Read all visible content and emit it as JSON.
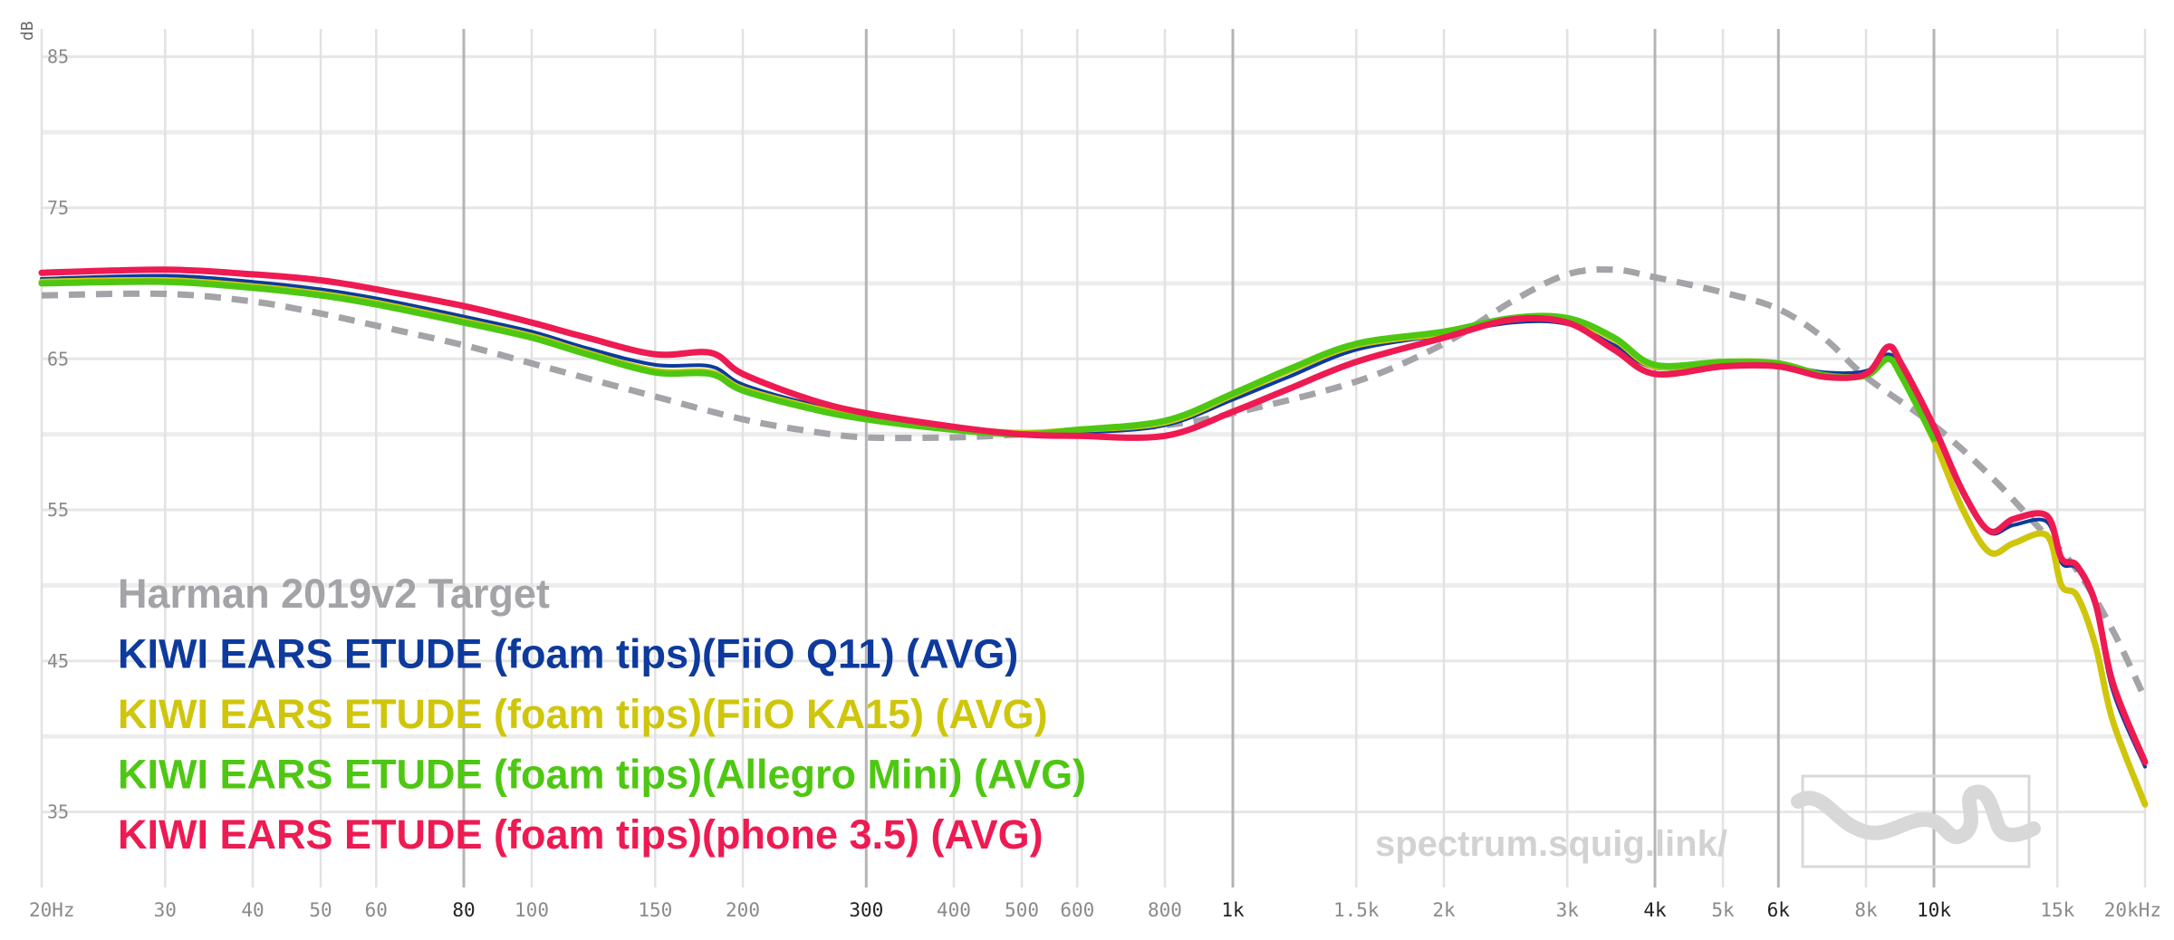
{
  "chart_data": {
    "type": "line",
    "x_scale": "log",
    "xlim": [
      20,
      20000
    ],
    "ylim": [
      30,
      86
    ],
    "ylabel": "dB",
    "x_ticks": [
      {
        "v": 20,
        "label": "20Hz",
        "major": false
      },
      {
        "v": 30,
        "label": "30",
        "major": false
      },
      {
        "v": 40,
        "label": "40",
        "major": false
      },
      {
        "v": 50,
        "label": "50",
        "major": false
      },
      {
        "v": 60,
        "label": "60",
        "major": false
      },
      {
        "v": 80,
        "label": "80",
        "major": true
      },
      {
        "v": 100,
        "label": "100",
        "major": false
      },
      {
        "v": 150,
        "label": "150",
        "major": false
      },
      {
        "v": 200,
        "label": "200",
        "major": false
      },
      {
        "v": 300,
        "label": "300",
        "major": true
      },
      {
        "v": 400,
        "label": "400",
        "major": false
      },
      {
        "v": 500,
        "label": "500",
        "major": false
      },
      {
        "v": 600,
        "label": "600",
        "major": false
      },
      {
        "v": 800,
        "label": "800",
        "major": false
      },
      {
        "v": 1000,
        "label": "1k",
        "major": true
      },
      {
        "v": 1500,
        "label": "1.5k",
        "major": false
      },
      {
        "v": 2000,
        "label": "2k",
        "major": false
      },
      {
        "v": 3000,
        "label": "3k",
        "major": false
      },
      {
        "v": 4000,
        "label": "4k",
        "major": true
      },
      {
        "v": 5000,
        "label": "5k",
        "major": false
      },
      {
        "v": 6000,
        "label": "6k",
        "major": true
      },
      {
        "v": 8000,
        "label": "8k",
        "major": false
      },
      {
        "v": 10000,
        "label": "10k",
        "major": true
      },
      {
        "v": 15000,
        "label": "15k",
        "major": false
      },
      {
        "v": 20000,
        "label": "20kHz",
        "major": false
      }
    ],
    "y_ticks": [
      {
        "v": 85,
        "label": "85"
      },
      {
        "v": 75,
        "label": "75"
      },
      {
        "v": 65,
        "label": "65"
      },
      {
        "v": 55,
        "label": "55"
      },
      {
        "v": 45,
        "label": "45"
      },
      {
        "v": 35,
        "label": "35"
      }
    ],
    "y_grid_minor": [
      80,
      70,
      60,
      50,
      40
    ],
    "grid": true,
    "legend_position": "bottom-left",
    "series": [
      {
        "name": "Harman 2019v2 Target",
        "color": "#a3a3a8",
        "dashed": true,
        "points": [
          [
            20,
            69.2
          ],
          [
            30,
            69.3
          ],
          [
            40,
            68.8
          ],
          [
            50,
            68.0
          ],
          [
            60,
            67.2
          ],
          [
            80,
            65.9
          ],
          [
            100,
            64.7
          ],
          [
            150,
            62.5
          ],
          [
            200,
            61.0
          ],
          [
            250,
            60.2
          ],
          [
            300,
            59.8
          ],
          [
            400,
            59.8
          ],
          [
            500,
            60.0
          ],
          [
            600,
            60.2
          ],
          [
            800,
            60.6
          ],
          [
            1000,
            61.4
          ],
          [
            1500,
            63.5
          ],
          [
            2000,
            66.0
          ],
          [
            2500,
            68.8
          ],
          [
            3000,
            70.6
          ],
          [
            3500,
            70.9
          ],
          [
            4000,
            70.4
          ],
          [
            5000,
            69.4
          ],
          [
            6000,
            68.3
          ],
          [
            7000,
            66.3
          ],
          [
            8000,
            63.8
          ],
          [
            10000,
            60.6
          ],
          [
            12000,
            57.3
          ],
          [
            14000,
            54.0
          ],
          [
            16000,
            51.0
          ],
          [
            18000,
            47.0
          ],
          [
            20000,
            42.5
          ]
        ]
      },
      {
        "name": "KIWI EARS ETUDE (foam tips)(FiiO Q11) (AVG)",
        "color": "#0d3a9c",
        "dashed": false,
        "points": [
          [
            20,
            70.3
          ],
          [
            30,
            70.5
          ],
          [
            40,
            70.1
          ],
          [
            50,
            69.6
          ],
          [
            60,
            69.0
          ],
          [
            80,
            67.8
          ],
          [
            100,
            66.8
          ],
          [
            120,
            65.7
          ],
          [
            150,
            64.6
          ],
          [
            180,
            64.5
          ],
          [
            200,
            63.3
          ],
          [
            250,
            62.0
          ],
          [
            300,
            61.3
          ],
          [
            400,
            60.5
          ],
          [
            500,
            60.1
          ],
          [
            600,
            60.1
          ],
          [
            800,
            60.6
          ],
          [
            1000,
            62.3
          ],
          [
            1200,
            63.8
          ],
          [
            1500,
            65.6
          ],
          [
            2000,
            66.6
          ],
          [
            2500,
            67.4
          ],
          [
            3000,
            67.3
          ],
          [
            3500,
            65.9
          ],
          [
            4000,
            64.4
          ],
          [
            5000,
            64.6
          ],
          [
            6000,
            64.6
          ],
          [
            7000,
            64.1
          ],
          [
            8000,
            64.2
          ],
          [
            8600,
            65.3
          ],
          [
            9000,
            64.2
          ],
          [
            10000,
            60.3
          ],
          [
            11000,
            56.0
          ],
          [
            12000,
            53.5
          ],
          [
            13000,
            54.0
          ],
          [
            14500,
            54.2
          ],
          [
            15200,
            51.5
          ],
          [
            16000,
            51.1
          ],
          [
            17000,
            48.5
          ],
          [
            18000,
            43.0
          ],
          [
            20000,
            38.0
          ]
        ]
      },
      {
        "name": "KIWI EARS ETUDE (foam tips)(FiiO KA15) (AVG)",
        "color": "#cfc60c",
        "dashed": false,
        "points": [
          [
            20,
            70.1
          ],
          [
            30,
            70.2
          ],
          [
            40,
            69.8
          ],
          [
            50,
            69.3
          ],
          [
            60,
            68.7
          ],
          [
            80,
            67.5
          ],
          [
            100,
            66.5
          ],
          [
            120,
            65.4
          ],
          [
            150,
            64.2
          ],
          [
            180,
            64.1
          ],
          [
            200,
            63.0
          ],
          [
            250,
            61.8
          ],
          [
            300,
            61.1
          ],
          [
            400,
            60.4
          ],
          [
            500,
            60.1
          ],
          [
            600,
            60.3
          ],
          [
            800,
            60.8
          ],
          [
            1000,
            62.6
          ],
          [
            1200,
            64.2
          ],
          [
            1500,
            65.9
          ],
          [
            2000,
            66.7
          ],
          [
            2500,
            67.6
          ],
          [
            3000,
            67.6
          ],
          [
            3500,
            66.3
          ],
          [
            4000,
            64.5
          ],
          [
            5000,
            64.8
          ],
          [
            6000,
            64.7
          ],
          [
            7000,
            63.9
          ],
          [
            8000,
            63.9
          ],
          [
            8600,
            65.0
          ],
          [
            9000,
            63.8
          ],
          [
            10000,
            59.6
          ],
          [
            11000,
            55.0
          ],
          [
            12000,
            52.2
          ],
          [
            13000,
            52.8
          ],
          [
            14500,
            53.3
          ],
          [
            15200,
            50.0
          ],
          [
            16000,
            49.3
          ],
          [
            17000,
            46.0
          ],
          [
            18000,
            41.0
          ],
          [
            20000,
            35.5
          ]
        ]
      },
      {
        "name": "KIWI EARS ETUDE (foam tips)(Allegro Mini) (AVG)",
        "color": "#4ec712",
        "dashed": false,
        "points": [
          [
            20,
            70.0
          ],
          [
            30,
            70.1
          ],
          [
            40,
            69.7
          ],
          [
            50,
            69.2
          ],
          [
            60,
            68.6
          ],
          [
            80,
            67.4
          ],
          [
            100,
            66.4
          ],
          [
            120,
            65.3
          ],
          [
            150,
            64.1
          ],
          [
            180,
            64.0
          ],
          [
            200,
            62.9
          ],
          [
            250,
            61.7
          ],
          [
            300,
            61.0
          ],
          [
            400,
            60.3
          ],
          [
            500,
            60.0
          ],
          [
            600,
            60.3
          ],
          [
            800,
            60.9
          ],
          [
            1000,
            62.7
          ],
          [
            1200,
            64.3
          ],
          [
            1500,
            66.0
          ],
          [
            2000,
            66.8
          ],
          [
            2500,
            67.7
          ],
          [
            3000,
            67.7
          ],
          [
            3500,
            66.4
          ],
          [
            4000,
            64.6
          ],
          [
            5000,
            64.8
          ],
          [
            6000,
            64.7
          ],
          [
            7000,
            63.9
          ],
          [
            8000,
            63.9
          ],
          [
            8600,
            65.0
          ],
          [
            9000,
            63.8
          ],
          [
            10000,
            59.7
          ]
        ]
      },
      {
        "name": "KIWI EARS ETUDE (foam tips)(phone 3.5) (AVG)",
        "color": "#ee1a52",
        "dashed": false,
        "points": [
          [
            20,
            70.7
          ],
          [
            30,
            70.9
          ],
          [
            40,
            70.6
          ],
          [
            50,
            70.2
          ],
          [
            60,
            69.6
          ],
          [
            80,
            68.5
          ],
          [
            100,
            67.4
          ],
          [
            120,
            66.4
          ],
          [
            150,
            65.3
          ],
          [
            180,
            65.4
          ],
          [
            200,
            64.0
          ],
          [
            250,
            62.3
          ],
          [
            300,
            61.4
          ],
          [
            400,
            60.5
          ],
          [
            500,
            60.0
          ],
          [
            600,
            59.9
          ],
          [
            800,
            59.9
          ],
          [
            1000,
            61.5
          ],
          [
            1200,
            63.0
          ],
          [
            1500,
            64.8
          ],
          [
            2000,
            66.4
          ],
          [
            2500,
            67.6
          ],
          [
            3000,
            67.4
          ],
          [
            3500,
            65.6
          ],
          [
            4000,
            64.0
          ],
          [
            5000,
            64.5
          ],
          [
            6000,
            64.5
          ],
          [
            7000,
            63.8
          ],
          [
            8000,
            64.0
          ],
          [
            8600,
            65.8
          ],
          [
            9000,
            64.6
          ],
          [
            10000,
            60.5
          ],
          [
            11000,
            56.2
          ],
          [
            12000,
            53.6
          ],
          [
            13000,
            54.4
          ],
          [
            14500,
            54.6
          ],
          [
            15200,
            51.8
          ],
          [
            16000,
            51.3
          ],
          [
            17000,
            48.8
          ],
          [
            18000,
            43.5
          ],
          [
            20000,
            38.3
          ]
        ]
      }
    ],
    "legend_order": [
      0,
      1,
      2,
      3,
      4
    ]
  },
  "watermark": {
    "text": "spectrum.squig.link/",
    "logo_icon": "squig-wave-logo-icon"
  }
}
